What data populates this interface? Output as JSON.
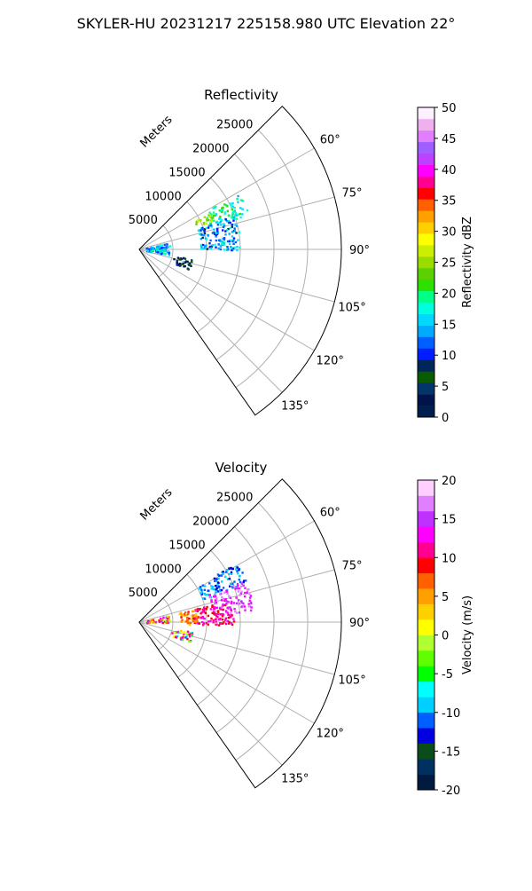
{
  "suptitle": "SKYLER-HU  20231217  225158.980 UTC Elevation 22°",
  "range_axis_label": "Meters",
  "range_ticks": [
    5000,
    10000,
    15000,
    20000,
    25000
  ],
  "range_tick_labels": [
    "5000",
    "10000",
    "15000",
    "20000",
    "25000"
  ],
  "azimuth_ticks": [
    60,
    75,
    90,
    105,
    120,
    135
  ],
  "azimuth_tick_labels": [
    "60°",
    "75°",
    "90°",
    "105°",
    "120°",
    "135°"
  ],
  "chart_data": [
    {
      "type": "heatmap",
      "projection": "polar",
      "title": "Reflectivity",
      "colorbar_label": "Reflectivity dBZ",
      "azimuth_range_deg": [
        45,
        145
      ],
      "max_range_m": 30000,
      "vmin": 0,
      "vmax": 50,
      "colorbar_ticks": [
        0,
        5,
        10,
        15,
        20,
        25,
        30,
        35,
        40,
        45,
        50
      ],
      "colorbar_tick_labels": [
        "0",
        "5",
        "10",
        "15",
        "20",
        "25",
        "30",
        "35",
        "40",
        "45",
        "50"
      ],
      "grid": true,
      "echo_regions": [
        {
          "az": [
            60,
            72
          ],
          "range": [
            11000,
            17000
          ],
          "value": [
            14,
            22
          ]
        },
        {
          "az": [
            62,
            68
          ],
          "range": [
            9000,
            12000
          ],
          "value": [
            22,
            28
          ]
        },
        {
          "az": [
            70,
            90
          ],
          "range": [
            9000,
            15000
          ],
          "value": [
            8,
            18
          ]
        },
        {
          "az": [
            76,
            100
          ],
          "range": [
            1000,
            4500
          ],
          "value": [
            10,
            20
          ]
        },
        {
          "az": [
            100,
            112
          ],
          "range": [
            5000,
            8000
          ],
          "value": [
            2,
            10
          ]
        }
      ]
    },
    {
      "type": "heatmap",
      "projection": "polar",
      "title": "Velocity",
      "colorbar_label": "Velocity (m/s)",
      "azimuth_range_deg": [
        45,
        145
      ],
      "max_range_m": 30000,
      "vmin": -20,
      "vmax": 20,
      "colorbar_ticks": [
        -20,
        -15,
        -10,
        -5,
        0,
        5,
        10,
        15,
        20
      ],
      "colorbar_tick_labels": [
        "-20",
        "-15",
        "-10",
        "-5",
        "0",
        "5",
        "10",
        "15",
        "20"
      ],
      "grid": true,
      "echo_regions": [
        {
          "az": [
            58,
            70
          ],
          "range": [
            10000,
            17000
          ],
          "value": [
            -13,
            -8
          ]
        },
        {
          "az": [
            68,
            84
          ],
          "range": [
            11000,
            17000
          ],
          "value": [
            12,
            18
          ]
        },
        {
          "az": [
            76,
            92
          ],
          "range": [
            8000,
            14000
          ],
          "value": [
            8,
            14
          ]
        },
        {
          "az": [
            76,
            92
          ],
          "range": [
            6000,
            8500
          ],
          "value": [
            2,
            9
          ]
        },
        {
          "az": [
            76,
            90
          ],
          "range": [
            1000,
            4500
          ],
          "value": [
            -3,
            16
          ]
        },
        {
          "az": [
            100,
            112
          ],
          "range": [
            5000,
            8000
          ],
          "value": [
            -12,
            15
          ]
        }
      ]
    }
  ],
  "colors": {
    "reflectivity_cmap": [
      "#001f4d",
      "#00134a",
      "#00366a",
      "#0a5a00",
      "#00245c",
      "#001dff",
      "#0060ff",
      "#00aaff",
      "#00d8ff",
      "#00ffdd",
      "#00ff88",
      "#2ee000",
      "#5cd000",
      "#9bdc00",
      "#ccee00",
      "#ffff00",
      "#ffd000",
      "#ffa000",
      "#ff6000",
      "#ff0000",
      "#ff0090",
      "#ff00ff",
      "#c040ff",
      "#a060ff",
      "#e080ff",
      "#f0b0f0",
      "#fff0ff"
    ],
    "velocity_cmap": [
      "#001a40",
      "#003060",
      "#0b4d1a",
      "#0000e0",
      "#0060ff",
      "#00d0ff",
      "#00ffff",
      "#00ff00",
      "#60ff00",
      "#b0ff30",
      "#ffff00",
      "#ffd000",
      "#ffa000",
      "#ff6000",
      "#ff0000",
      "#ff0090",
      "#ff00ff",
      "#c030ff",
      "#e080ff",
      "#ffd0ff"
    ],
    "grid": "#b0b0b0",
    "spine": "#000000"
  }
}
